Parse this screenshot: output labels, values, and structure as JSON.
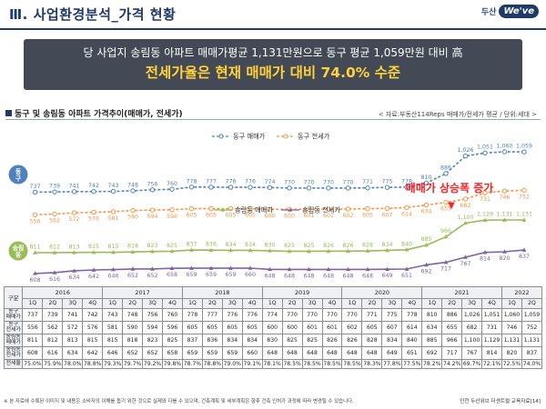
{
  "header": {
    "title": "Ⅲ. 사업환경분석_가격 현황",
    "logo_text": "두산",
    "logo_badge": "We've"
  },
  "banner": {
    "line1": "당 사업지 송림동 아파트 매매가평균 1,131만원으로 동구 평균 1,059만원 대비 高",
    "line2": "전세가율은 현재 매매가 대비 74.0% 수준"
  },
  "section": {
    "title": "동구 및 송림동 아파트 가격추이(매매가, 전세가)",
    "source": "< 자료:부동산114Reps 매매가/전세가 평균 / 단위:세대 >"
  },
  "annotation": {
    "text": "매매가 상승폭 증가",
    "marker": "▼"
  },
  "labels": {
    "donggu": "동구",
    "songrim": "송림동"
  },
  "colors": {
    "blue": "#4f81bd",
    "orange": "#f79646",
    "green": "#9bbb59",
    "purple": "#8064a2"
  },
  "chart_data": {
    "type": "line",
    "categories": [
      "2016 1Q",
      "2016 2Q",
      "2016 3Q",
      "2016 4Q",
      "2017 1Q",
      "2017 2Q",
      "2017 3Q",
      "2017 4Q",
      "2018 1Q",
      "2018 2Q",
      "2018 3Q",
      "2018 4Q",
      "2019 1Q",
      "2019 2Q",
      "2019 3Q",
      "2019 4Q",
      "2020 1Q",
      "2020 2Q",
      "2020 3Q",
      "2020 4Q",
      "2021 1Q",
      "2021 2Q",
      "2021 3Q",
      "2021 4Q",
      "2022 1Q",
      "2022 2Q"
    ],
    "panels": [
      {
        "name": "동구",
        "series": [
          {
            "name": "동구 매매가",
            "color": "#4f81bd",
            "values": [
              737,
              739,
              741,
              742,
              743,
              748,
              756,
              760,
              778,
              777,
              776,
              776,
              774,
              770,
              770,
              770,
              770,
              771,
              775,
              778,
              810,
              886,
              1026,
              1051,
              1060,
              1059
            ]
          },
          {
            "name": "동구 전세가",
            "color": "#f79646",
            "values": [
              556,
              562,
              572,
              576,
              581,
              590,
              594,
              596,
              605,
              605,
              605,
              605,
              600,
              600,
              601,
              601,
              602,
              605,
              607,
              614,
              634,
              655,
              682,
              731,
              746,
              752
            ]
          }
        ]
      },
      {
        "name": "송림동",
        "series": [
          {
            "name": "송림동 매매가",
            "color": "#9bbb59",
            "values": [
              811,
              812,
              813,
              815,
              815,
              818,
              823,
              825,
              837,
              836,
              834,
              834,
              830,
              825,
              825,
              826,
              826,
              828,
              834,
              840,
              885,
              966,
              1100,
              1129,
              1131,
              1131
            ]
          },
          {
            "name": "송림동 전세가",
            "color": "#8064a2",
            "values": [
              608,
              616,
              634,
              642,
              646,
              652,
              652,
              658,
              659,
              659,
              659,
              660,
              648,
              648,
              648,
              648,
              648,
              648,
              649,
              651,
              692,
              717,
              767,
              814,
              820,
              837
            ]
          }
        ]
      }
    ]
  },
  "table": {
    "corner": "구분",
    "years": [
      {
        "label": "2016",
        "span": 4
      },
      {
        "label": "2017",
        "span": 4
      },
      {
        "label": "2018",
        "span": 4
      },
      {
        "label": "2019",
        "span": 4
      },
      {
        "label": "2020",
        "span": 4
      },
      {
        "label": "2021",
        "span": 4
      },
      {
        "label": "2022",
        "span": 2
      }
    ],
    "quarters": [
      "1Q",
      "2Q",
      "3Q",
      "4Q",
      "1Q",
      "2Q",
      "3Q",
      "4Q",
      "1Q",
      "2Q",
      "3Q",
      "4Q",
      "1Q",
      "2Q",
      "3Q",
      "4Q",
      "1Q",
      "2Q",
      "3Q",
      "4Q",
      "1Q",
      "2Q",
      "3Q",
      "4Q",
      "1Q",
      "2Q"
    ],
    "rows": [
      {
        "label1": "동구",
        "label2": "매매가",
        "values": [
          "737",
          "739",
          "741",
          "742",
          "743",
          "748",
          "756",
          "760",
          "778",
          "777",
          "776",
          "776",
          "774",
          "770",
          "770",
          "770",
          "770",
          "771",
          "775",
          "778",
          "810",
          "886",
          "1,026",
          "1,051",
          "1,060",
          "1,059"
        ]
      },
      {
        "label1": "동구",
        "label2": "전세가",
        "values": [
          "556",
          "562",
          "572",
          "576",
          "581",
          "590",
          "594",
          "596",
          "605",
          "605",
          "605",
          "605",
          "600",
          "600",
          "601",
          "601",
          "602",
          "605",
          "607",
          "614",
          "634",
          "655",
          "682",
          "731",
          "746",
          "752"
        ]
      },
      {
        "label1": "송림동",
        "label2": "매매가",
        "values": [
          "811",
          "812",
          "813",
          "815",
          "815",
          "818",
          "823",
          "825",
          "837",
          "836",
          "834",
          "834",
          "830",
          "825",
          "825",
          "826",
          "826",
          "828",
          "834",
          "840",
          "885",
          "966",
          "1,100",
          "1,129",
          "1,131",
          "1,131"
        ]
      },
      {
        "label1": "송림동",
        "label2": "전세가",
        "values": [
          "608",
          "616",
          "634",
          "642",
          "646",
          "652",
          "652",
          "658",
          "659",
          "659",
          "659",
          "660",
          "648",
          "648",
          "648",
          "648",
          "648",
          "648",
          "649",
          "651",
          "692",
          "717",
          "767",
          "814",
          "820",
          "837"
        ]
      },
      {
        "label1": "전세율",
        "label2": "",
        "values": [
          "75.0%",
          "75.9%",
          "78.0%",
          "78.8%",
          "79.3%",
          "79.7%",
          "79.2%",
          "79.8%",
          "78.7%",
          "78.8%",
          "79.0%",
          "79.1%",
          "78.1%",
          "78.5%",
          "78.5%",
          "78.5%",
          "78.5%",
          "78.3%",
          "77.8%",
          "77.5%",
          "78.2%",
          "74.2%",
          "69.7%",
          "72.1%",
          "72.5%",
          "74.0%"
        ]
      }
    ]
  },
  "footer": {
    "left": "※ 본 자료에 수록된 이미지 및 내용은 소비자의 이해를 돕기 위한 것으로 실제와 다를 수 있으며, 건축계획 및 세부계획은 향후 건축 인허가 과정에 따라 변경될 수 있습니다.",
    "right": "인천 두산위브 더센트럴 교육자료[14]"
  }
}
